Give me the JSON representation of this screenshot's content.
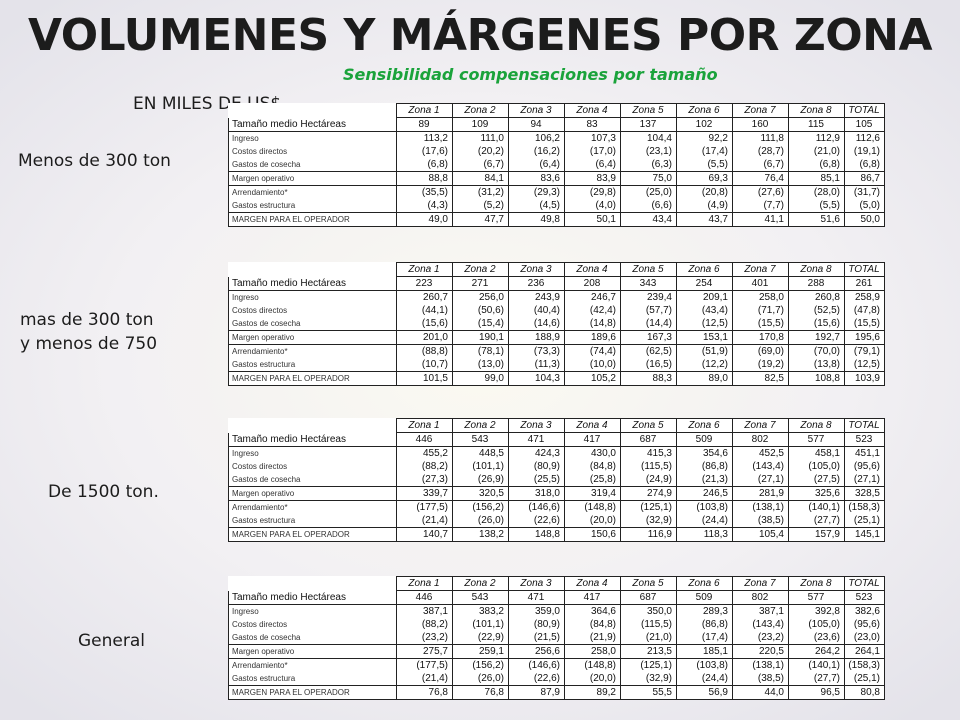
{
  "title": "VOLUMENES Y MÁRGENES POR ZONA",
  "subtitle": "Sensibilidad compensaciones por tamaño",
  "units": "EN  MILES DE US$",
  "columns": [
    "Zona 1",
    "Zona 2",
    "Zona 3",
    "Zona 4",
    "Zona 5",
    "Zona 6",
    "Zona 7",
    "Zona 8",
    "TOTAL"
  ],
  "row_labels": [
    "Tamaño medio Hectáreas",
    "Ingreso",
    "Costos directos",
    "Gastos de cosecha",
    "Margen operativo",
    "Arrendamiento*",
    "Gastos estructura",
    "MARGEN PARA EL OPERADOR"
  ],
  "colors": {
    "subtitle": "#1aa33b",
    "text": "#1c1c1c"
  },
  "sections": [
    {
      "label_lines": [
        "Menos de 300 ton"
      ],
      "rows": [
        [
          "89",
          "109",
          "94",
          "83",
          "137",
          "102",
          "160",
          "115",
          "105"
        ],
        [
          "113,2",
          "111,0",
          "106,2",
          "107,3",
          "104,4",
          "92,2",
          "111,8",
          "112,9",
          "112,6"
        ],
        [
          "(17,6)",
          "(20,2)",
          "(16,2)",
          "(17,0)",
          "(23,1)",
          "(17,4)",
          "(28,7)",
          "(21,0)",
          "(19,1)"
        ],
        [
          "(6,8)",
          "(6,7)",
          "(6,4)",
          "(6,4)",
          "(6,3)",
          "(5,5)",
          "(6,7)",
          "(6,8)",
          "(6,8)"
        ],
        [
          "88,8",
          "84,1",
          "83,6",
          "83,9",
          "75,0",
          "69,3",
          "76,4",
          "85,1",
          "86,7"
        ],
        [
          "(35,5)",
          "(31,2)",
          "(29,3)",
          "(29,8)",
          "(25,0)",
          "(20,8)",
          "(27,6)",
          "(28,0)",
          "(31,7)"
        ],
        [
          "(4,3)",
          "(5,2)",
          "(4,5)",
          "(4,0)",
          "(6,6)",
          "(4,9)",
          "(7,7)",
          "(5,5)",
          "(5,0)"
        ],
        [
          "49,0",
          "47,7",
          "49,8",
          "50,1",
          "43,4",
          "43,7",
          "41,1",
          "51,6",
          "50,0"
        ]
      ]
    },
    {
      "label_lines": [
        "mas de 300 ton",
        "y menos de 750"
      ],
      "rows": [
        [
          "223",
          "271",
          "236",
          "208",
          "343",
          "254",
          "401",
          "288",
          "261"
        ],
        [
          "260,7",
          "256,0",
          "243,9",
          "246,7",
          "239,4",
          "209,1",
          "258,0",
          "260,8",
          "258,9"
        ],
        [
          "(44,1)",
          "(50,6)",
          "(40,4)",
          "(42,4)",
          "(57,7)",
          "(43,4)",
          "(71,7)",
          "(52,5)",
          "(47,8)"
        ],
        [
          "(15,6)",
          "(15,4)",
          "(14,6)",
          "(14,8)",
          "(14,4)",
          "(12,5)",
          "(15,5)",
          "(15,6)",
          "(15,5)"
        ],
        [
          "201,0",
          "190,1",
          "188,9",
          "189,6",
          "167,3",
          "153,1",
          "170,8",
          "192,7",
          "195,6"
        ],
        [
          "(88,8)",
          "(78,1)",
          "(73,3)",
          "(74,4)",
          "(62,5)",
          "(51,9)",
          "(69,0)",
          "(70,0)",
          "(79,1)"
        ],
        [
          "(10,7)",
          "(13,0)",
          "(11,3)",
          "(10,0)",
          "(16,5)",
          "(12,2)",
          "(19,2)",
          "(13,8)",
          "(12,5)"
        ],
        [
          "101,5",
          "99,0",
          "104,3",
          "105,2",
          "88,3",
          "89,0",
          "82,5",
          "108,8",
          "103,9"
        ]
      ]
    },
    {
      "label_lines": [
        "De 1500 ton."
      ],
      "rows": [
        [
          "446",
          "543",
          "471",
          "417",
          "687",
          "509",
          "802",
          "577",
          "523"
        ],
        [
          "455,2",
          "448,5",
          "424,3",
          "430,0",
          "415,3",
          "354,6",
          "452,5",
          "458,1",
          "451,1"
        ],
        [
          "(88,2)",
          "(101,1)",
          "(80,9)",
          "(84,8)",
          "(115,5)",
          "(86,8)",
          "(143,4)",
          "(105,0)",
          "(95,6)"
        ],
        [
          "(27,3)",
          "(26,9)",
          "(25,5)",
          "(25,8)",
          "(24,9)",
          "(21,3)",
          "(27,1)",
          "(27,5)",
          "(27,1)"
        ],
        [
          "339,7",
          "320,5",
          "318,0",
          "319,4",
          "274,9",
          "246,5",
          "281,9",
          "325,6",
          "328,5"
        ],
        [
          "(177,5)",
          "(156,2)",
          "(146,6)",
          "(148,8)",
          "(125,1)",
          "(103,8)",
          "(138,1)",
          "(140,1)",
          "(158,3)"
        ],
        [
          "(21,4)",
          "(26,0)",
          "(22,6)",
          "(20,0)",
          "(32,9)",
          "(24,4)",
          "(38,5)",
          "(27,7)",
          "(25,1)"
        ],
        [
          "140,7",
          "138,2",
          "148,8",
          "150,6",
          "116,9",
          "118,3",
          "105,4",
          "157,9",
          "145,1"
        ]
      ]
    },
    {
      "label_lines": [
        "General"
      ],
      "rows": [
        [
          "446",
          "543",
          "471",
          "417",
          "687",
          "509",
          "802",
          "577",
          "523"
        ],
        [
          "387,1",
          "383,2",
          "359,0",
          "364,6",
          "350,0",
          "289,3",
          "387,1",
          "392,8",
          "382,6"
        ],
        [
          "(88,2)",
          "(101,1)",
          "(80,9)",
          "(84,8)",
          "(115,5)",
          "(86,8)",
          "(143,4)",
          "(105,0)",
          "(95,6)"
        ],
        [
          "(23,2)",
          "(22,9)",
          "(21,5)",
          "(21,9)",
          "(21,0)",
          "(17,4)",
          "(23,2)",
          "(23,6)",
          "(23,0)"
        ],
        [
          "275,7",
          "259,1",
          "256,6",
          "258,0",
          "213,5",
          "185,1",
          "220,5",
          "264,2",
          "264,1"
        ],
        [
          "(177,5)",
          "(156,2)",
          "(146,6)",
          "(148,8)",
          "(125,1)",
          "(103,8)",
          "(138,1)",
          "(140,1)",
          "(158,3)"
        ],
        [
          "(21,4)",
          "(26,0)",
          "(22,6)",
          "(20,0)",
          "(32,9)",
          "(24,4)",
          "(38,5)",
          "(27,7)",
          "(25,1)"
        ],
        [
          "76,8",
          "76,8",
          "87,9",
          "89,2",
          "55,5",
          "56,9",
          "44,0",
          "96,5",
          "80,8"
        ]
      ]
    }
  ]
}
